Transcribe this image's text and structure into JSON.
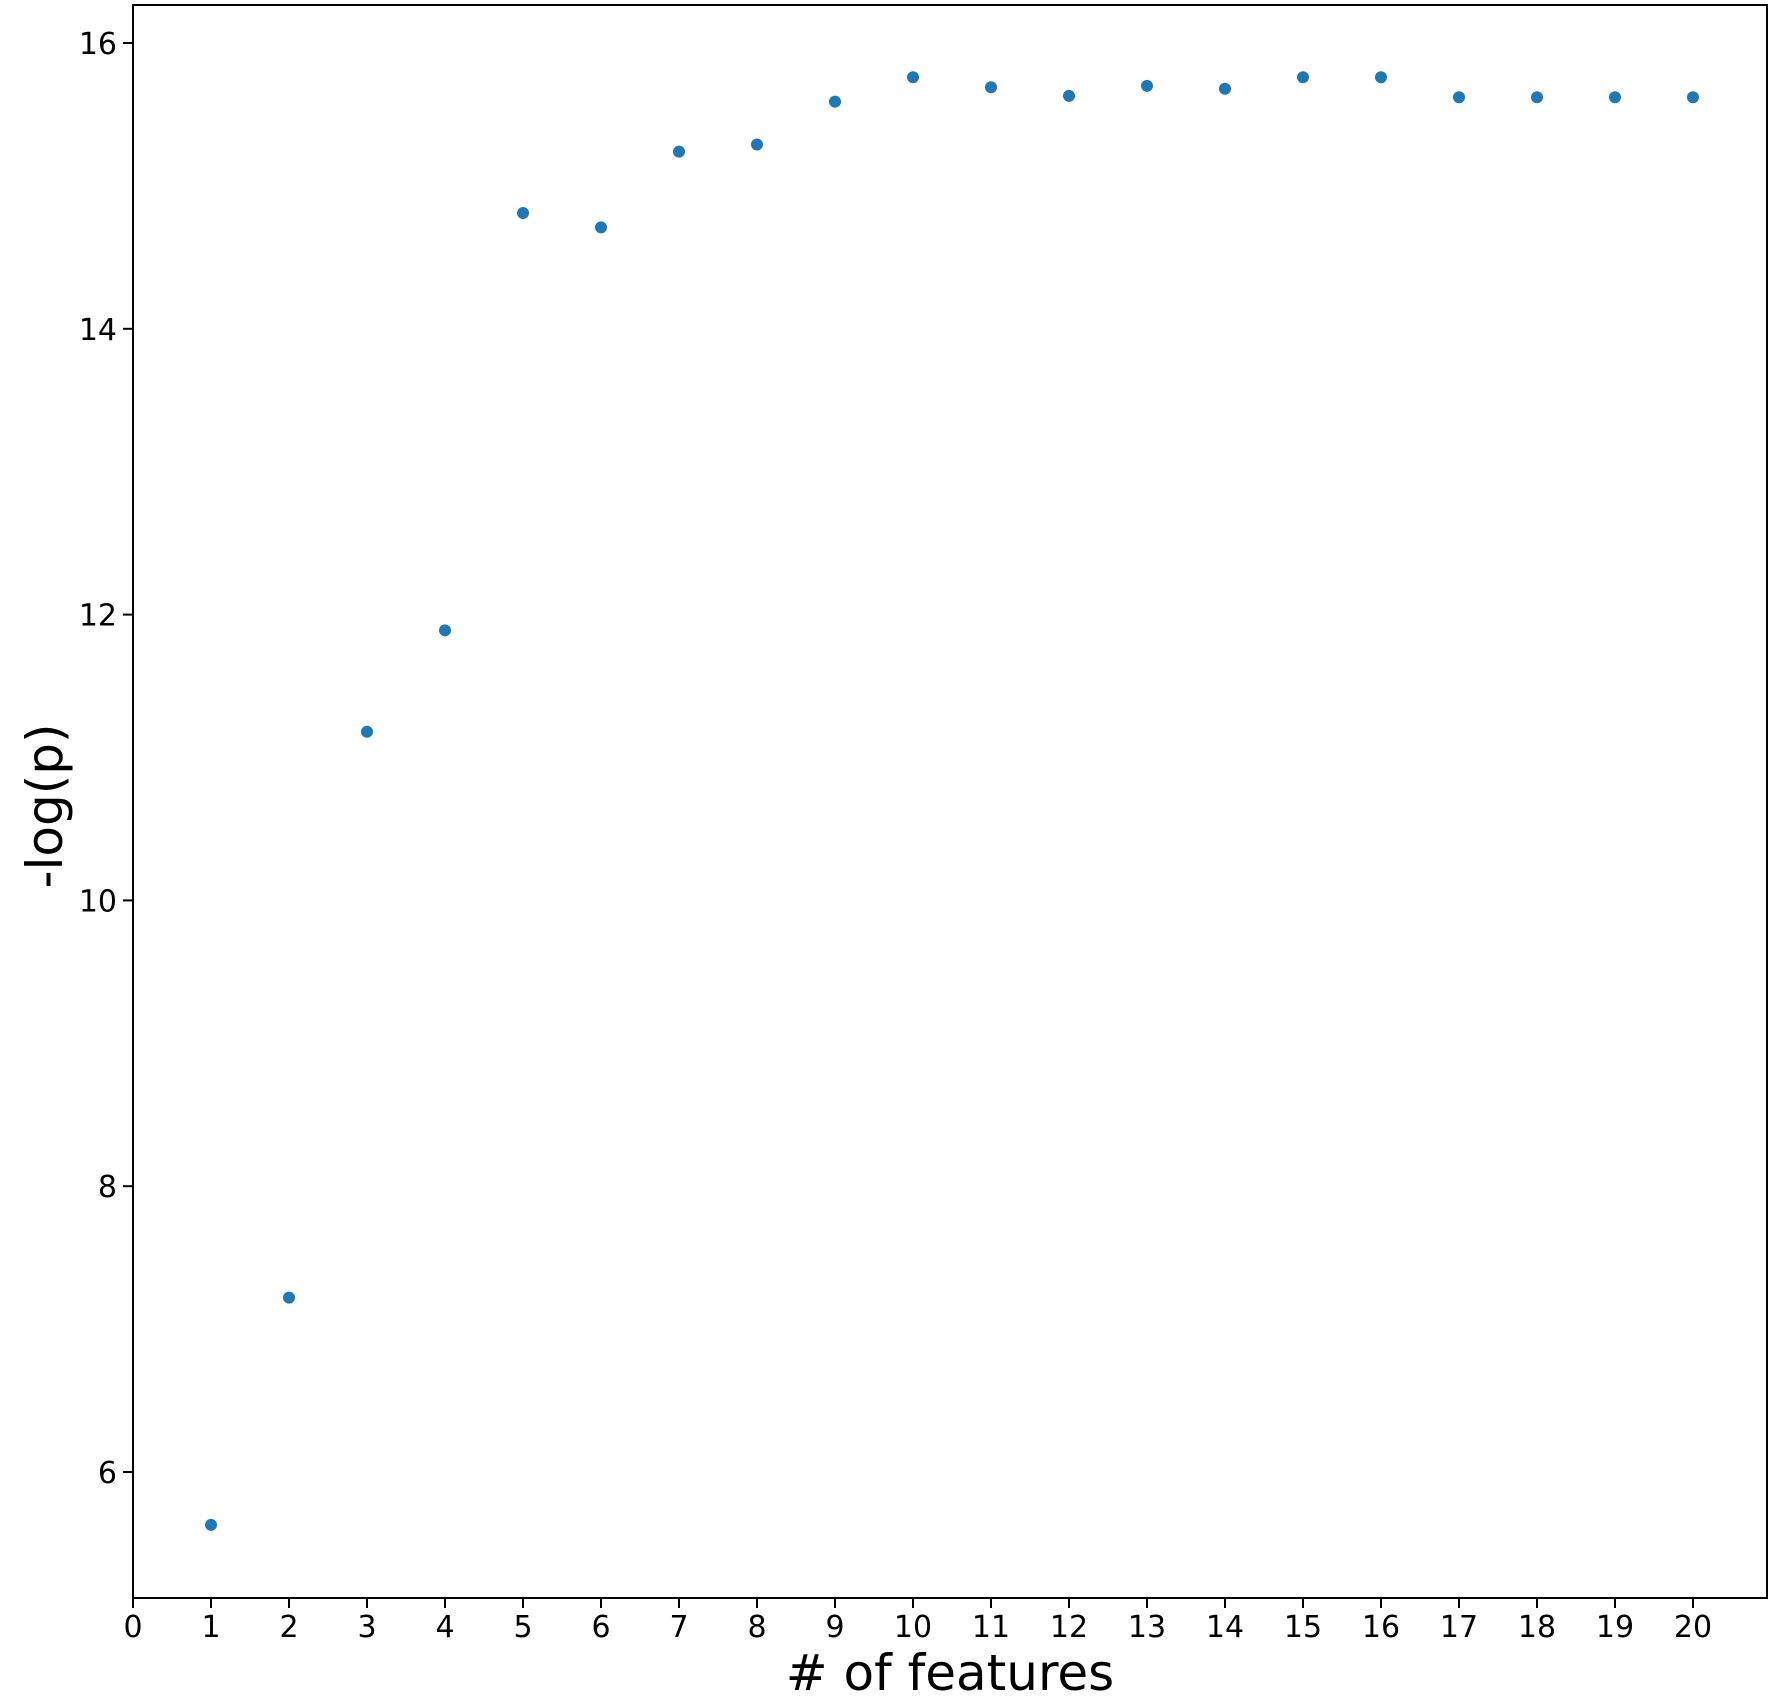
{
  "chart_data": {
    "type": "scatter",
    "title": "",
    "xlabel": "# of features",
    "ylabel": "-log(p)",
    "xlim": [
      0,
      21
    ],
    "ylim": [
      5.1,
      16.3
    ],
    "xticks": [
      0,
      1,
      2,
      3,
      4,
      5,
      6,
      7,
      8,
      9,
      10,
      11,
      12,
      13,
      14,
      15,
      16,
      17,
      18,
      19,
      20
    ],
    "yticks": [
      6,
      8,
      10,
      12,
      14,
      16
    ],
    "grid": false,
    "legend": "none",
    "marker_color": "#1f77b4",
    "series": [
      {
        "x": [
          1,
          2,
          3,
          4,
          5,
          6,
          7,
          8,
          9,
          10,
          11,
          12,
          13,
          14,
          15,
          16,
          17,
          18,
          19,
          20
        ],
        "y": [
          5.63,
          7.22,
          11.18,
          11.89,
          14.81,
          14.71,
          15.24,
          15.29,
          15.59,
          15.76,
          15.69,
          15.63,
          15.7,
          15.68,
          15.76,
          15.76,
          15.62,
          15.62,
          15.62,
          15.62
        ]
      }
    ]
  }
}
